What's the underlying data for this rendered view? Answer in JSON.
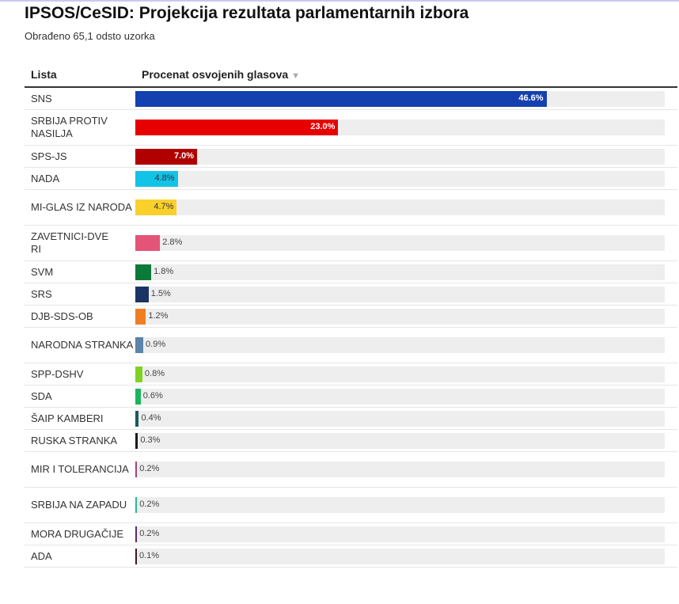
{
  "title": "IPSOS/CeSID: Projekcija rezultata parlamentarnih izbora",
  "subtitle": "Obrađeno 65,1 odsto uzorka",
  "chart_data": {
    "type": "bar",
    "columns": [
      "Lista",
      "Procenat osvojenih glasova"
    ],
    "sort_indicator": "▼",
    "xlim": [
      0,
      60
    ],
    "rows": [
      {
        "label": "SNS",
        "value": 46.6,
        "text": "46.6%",
        "color": "#1440b0",
        "ink": "#fff"
      },
      {
        "label": "SRBIJA PROTIV NASILJA",
        "value": 23.0,
        "text": "23.0%",
        "color": "#e60000",
        "ink": "#fff"
      },
      {
        "label": "SPS-JS",
        "value": 7.0,
        "text": "7.0%",
        "color": "#b00000",
        "ink": "#fff"
      },
      {
        "label": "NADA",
        "value": 4.8,
        "text": "4.8%",
        "color": "#12c3e8",
        "ink": "#333"
      },
      {
        "label": "MI-GLAS IZ NARODA",
        "value": 4.7,
        "text": "4.7%",
        "color": "#fad02c",
        "ink": "#333"
      },
      {
        "label": "ZAVETNICI-DVERI",
        "value": 2.8,
        "text": "2.8%",
        "color": "#e45479"
      },
      {
        "label": "SVM",
        "value": 1.8,
        "text": "1.8%",
        "color": "#0a7a3a"
      },
      {
        "label": "SRS",
        "value": 1.5,
        "text": "1.5%",
        "color": "#1a3564"
      },
      {
        "label": "DJB-SDS-OB",
        "value": 1.2,
        "text": "1.2%",
        "color": "#f07e22"
      },
      {
        "label": "NARODNA STRANKA",
        "value": 0.9,
        "text": "0.9%",
        "color": "#5b84a8"
      },
      {
        "label": "SPP-DSHV",
        "value": 0.8,
        "text": "0.8%",
        "color": "#7ed321"
      },
      {
        "label": "SDA",
        "value": 0.6,
        "text": "0.6%",
        "color": "#1bb45e"
      },
      {
        "label": "ŠAIP KAMBERI",
        "value": 0.4,
        "text": "0.4%",
        "color": "#1b5a5a"
      },
      {
        "label": "RUSKA STRANKA",
        "value": 0.3,
        "text": "0.3%",
        "color": "#1a1a1a"
      },
      {
        "label": "MIR I TOLERANCIJA",
        "value": 0.2,
        "text": "0.2%",
        "color": "#a0457e"
      },
      {
        "label": "SRBIJA NA ZAPADU",
        "value": 0.2,
        "text": "0.2%",
        "color": "#2bb5a0"
      },
      {
        "label": "MORA DRUGAČIJE",
        "value": 0.2,
        "text": "0.2%",
        "color": "#5a2a6e"
      },
      {
        "label": "ADA",
        "value": 0.1,
        "text": "0.1%",
        "color": "#3a1a2a"
      }
    ]
  }
}
